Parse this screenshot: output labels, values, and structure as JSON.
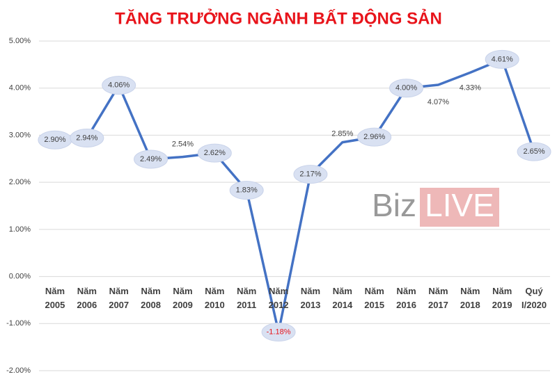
{
  "chart_data": {
    "type": "line",
    "title": "TĂNG TRƯỞNG NGÀNH BẤT ĐỘNG SẢN",
    "categories": [
      "Năm 2005",
      "Năm 2006",
      "Năm 2007",
      "Năm 2008",
      "Năm 2009",
      "Năm 2010",
      "Năm 2011",
      "Năm 2012",
      "Năm 2013",
      "Năm 2014",
      "Năm 2015",
      "Năm 2016",
      "Năm 2017",
      "Năm 2018",
      "Năm 2019",
      "Quý I/2020"
    ],
    "values": [
      2.9,
      2.94,
      4.06,
      2.49,
      2.54,
      2.62,
      1.83,
      -1.18,
      2.17,
      2.85,
      2.96,
      4.0,
      4.07,
      4.33,
      4.61,
      2.65
    ],
    "value_labels": [
      "2.90%",
      "2.94%",
      "4.06%",
      "2.49%",
      "2.54%",
      "2.62%",
      "1.83%",
      "-1.18%",
      "2.17%",
      "2.85%",
      "2.96%",
      "4.00%",
      "4.07%",
      "4.33%",
      "4.61%",
      "2.65%"
    ],
    "color": "#4472c4",
    "ylim": [
      -2,
      5
    ],
    "yticks": [
      {
        "value": -2,
        "label": "-2.00%"
      },
      {
        "value": -1,
        "label": "-1.00%"
      },
      {
        "value": 0,
        "label": "0.00%"
      },
      {
        "value": 1,
        "label": "1.00%"
      },
      {
        "value": 2,
        "label": "2.00%"
      },
      {
        "value": 3,
        "label": "3.00%"
      },
      {
        "value": 4,
        "label": "4.00%"
      },
      {
        "value": 5,
        "label": "5.00%"
      }
    ],
    "grid": true,
    "watermark": [
      "Biz",
      "LIVE"
    ]
  }
}
